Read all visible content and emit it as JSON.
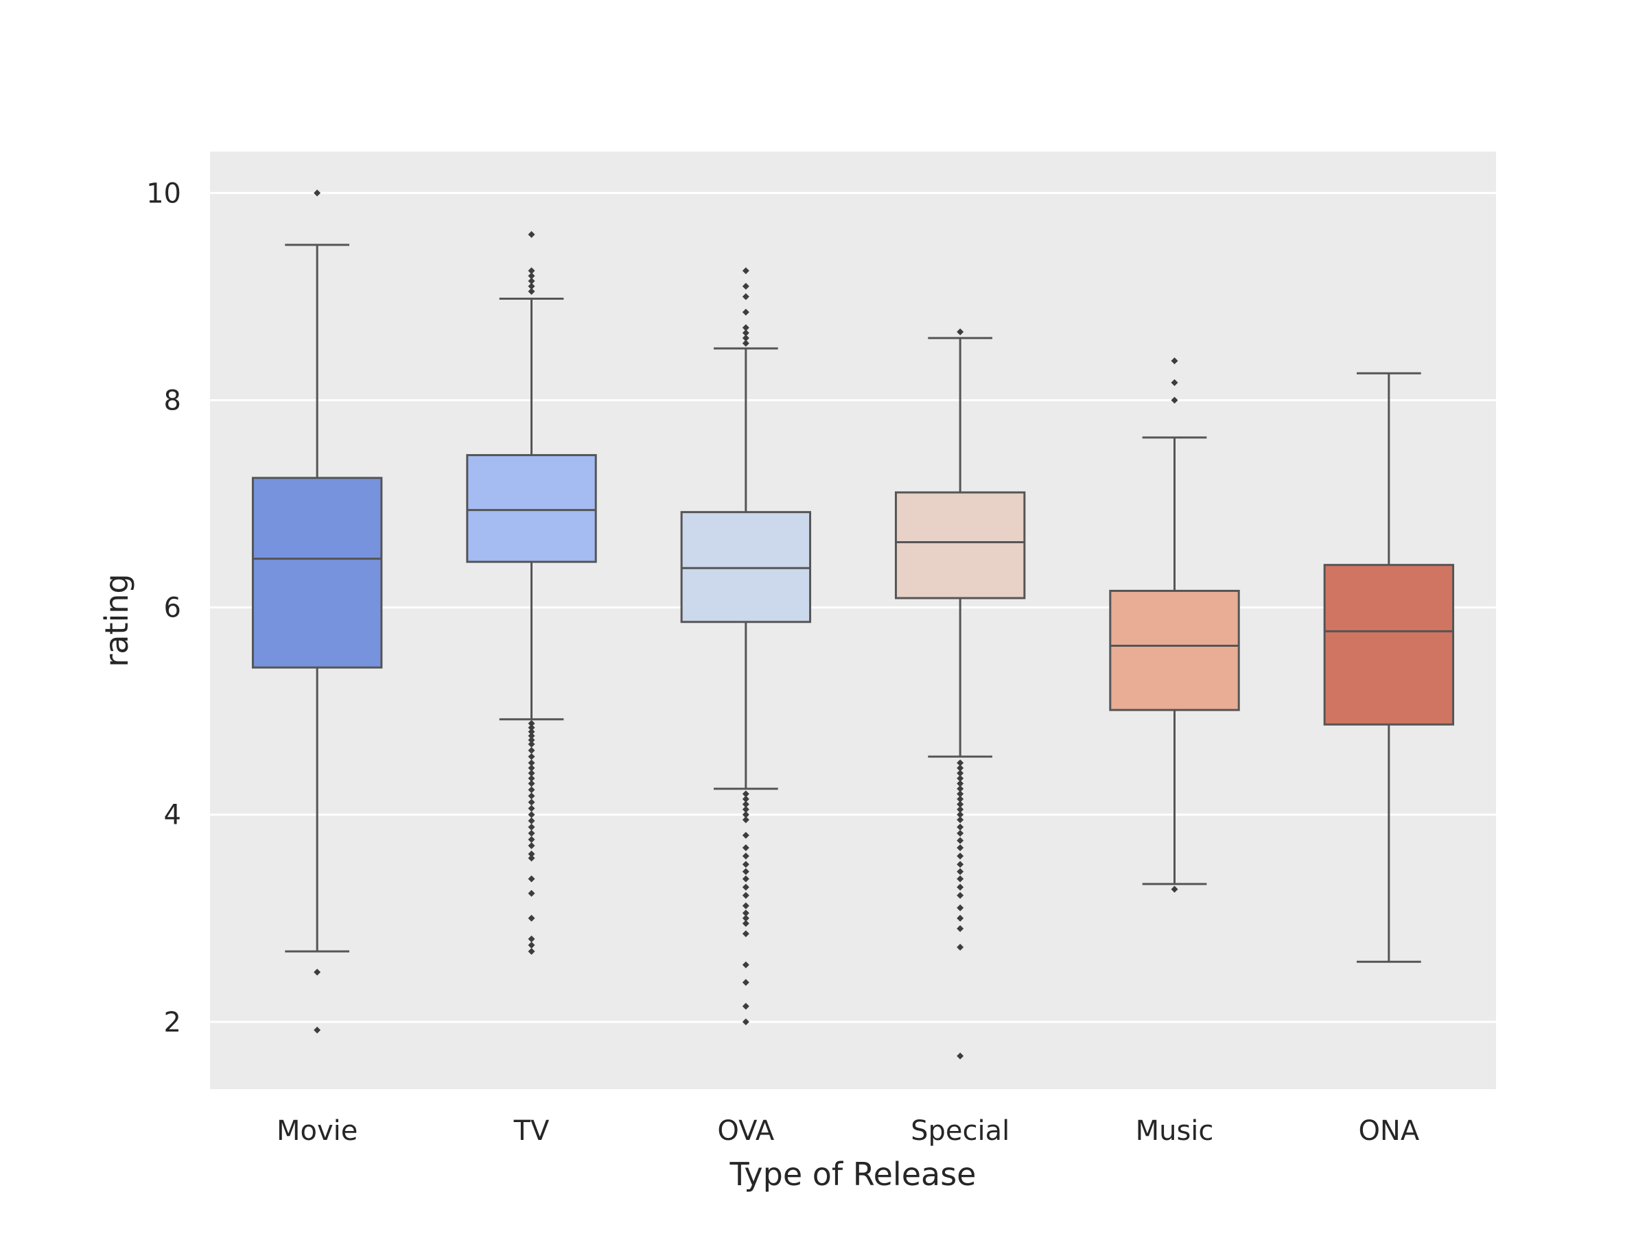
{
  "chart_data": {
    "type": "box",
    "title": "",
    "xlabel": "Type of Release",
    "ylabel": "rating",
    "ylim": [
      1.35,
      10.4
    ],
    "yticks": [
      2,
      4,
      6,
      8,
      10
    ],
    "grid": "y",
    "background": "#ebebeb",
    "categories": [
      "Movie",
      "TV",
      "OVA",
      "Special",
      "Music",
      "ONA"
    ],
    "boxes": [
      {
        "category": "Movie",
        "color": "#7893dd",
        "whisker_low": 2.68,
        "q1": 5.42,
        "median": 6.47,
        "q3": 7.25,
        "whisker_high": 9.5,
        "outliers": [
          2.48,
          1.92,
          10.0
        ]
      },
      {
        "category": "TV",
        "color": "#a4bcf2",
        "whisker_low": 4.92,
        "q1": 6.44,
        "median": 6.94,
        "q3": 7.47,
        "whisker_high": 8.98,
        "outliers": [
          9.6,
          9.25,
          9.2,
          9.15,
          9.1,
          9.05,
          4.88,
          4.84,
          4.8,
          4.76,
          4.72,
          4.68,
          4.62,
          4.56,
          4.5,
          4.45,
          4.4,
          4.35,
          4.3,
          4.24,
          4.18,
          4.12,
          4.06,
          4.0,
          3.94,
          3.88,
          3.82,
          3.76,
          3.7,
          3.62,
          3.58,
          3.38,
          3.24,
          3.0,
          2.8,
          2.74,
          2.68
        ]
      },
      {
        "category": "OVA",
        "color": "#ccd8eb",
        "whisker_low": 4.25,
        "q1": 5.86,
        "median": 6.38,
        "q3": 6.92,
        "whisker_high": 8.5,
        "outliers": [
          9.25,
          9.1,
          9.0,
          8.85,
          8.7,
          8.65,
          8.6,
          8.55,
          4.2,
          4.15,
          4.1,
          4.05,
          4.0,
          3.95,
          3.8,
          3.68,
          3.6,
          3.52,
          3.45,
          3.38,
          3.3,
          3.22,
          3.12,
          3.05,
          3.0,
          2.95,
          2.85,
          2.55,
          2.38,
          2.15,
          2.0
        ]
      },
      {
        "category": "Special",
        "color": "#e8d1c6",
        "whisker_low": 4.56,
        "q1": 6.09,
        "median": 6.63,
        "q3": 7.11,
        "whisker_high": 8.6,
        "outliers": [
          8.66,
          4.5,
          4.45,
          4.4,
          4.35,
          4.3,
          4.25,
          4.2,
          4.15,
          4.1,
          4.05,
          4.0,
          3.95,
          3.88,
          3.82,
          3.75,
          3.68,
          3.6,
          3.52,
          3.45,
          3.38,
          3.3,
          3.22,
          3.1,
          3.0,
          2.9,
          2.72,
          1.67
        ]
      },
      {
        "category": "Music",
        "color": "#e9ad95",
        "whisker_low": 3.33,
        "q1": 5.01,
        "median": 5.63,
        "q3": 6.16,
        "whisker_high": 7.64,
        "outliers": [
          8.38,
          8.17,
          8.0,
          3.28
        ]
      },
      {
        "category": "ONA",
        "color": "#d17563",
        "whisker_low": 2.58,
        "q1": 4.87,
        "median": 5.77,
        "q3": 6.41,
        "whisker_high": 8.26,
        "outliers": []
      }
    ]
  }
}
